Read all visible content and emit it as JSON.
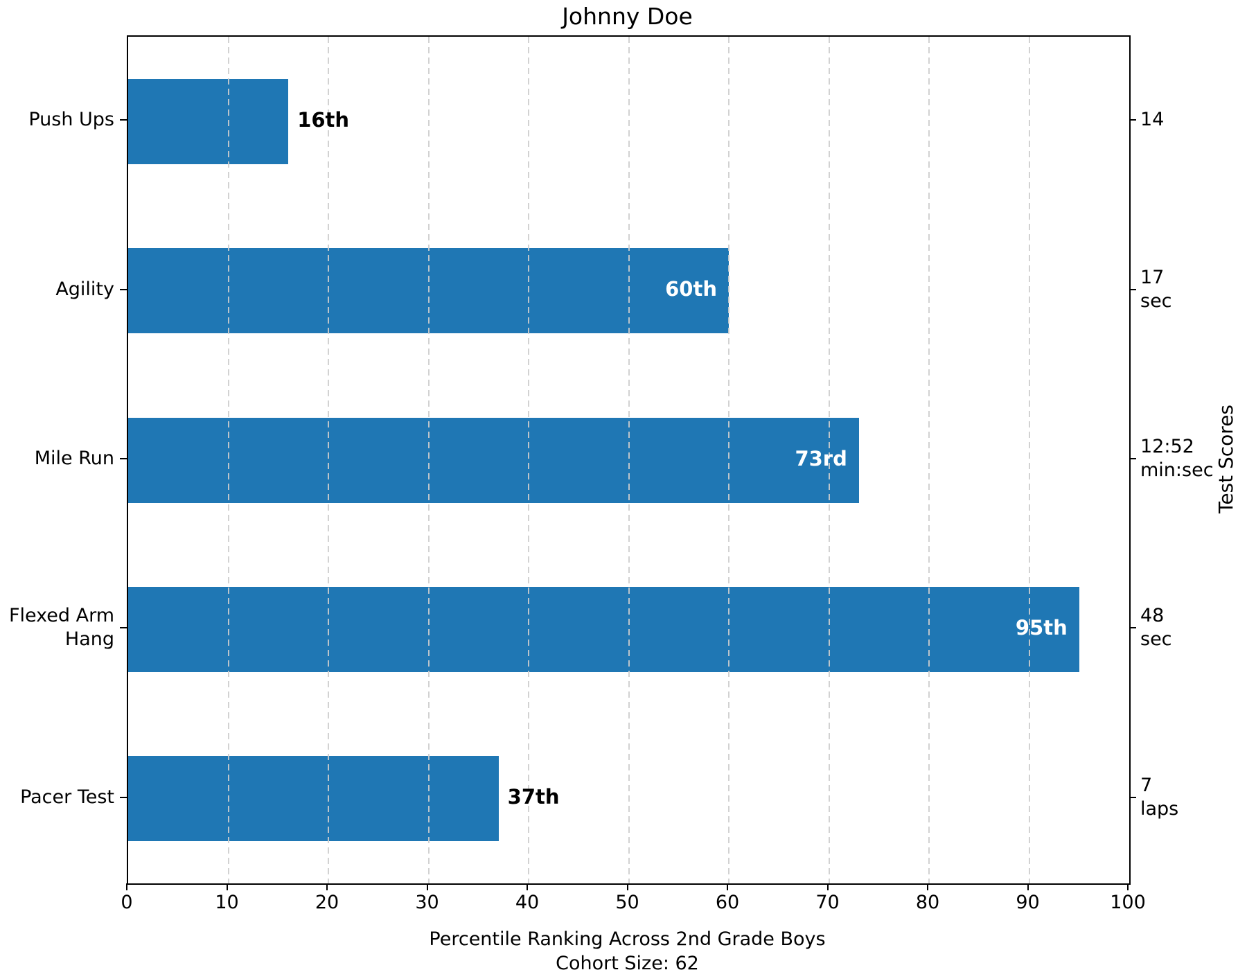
{
  "chart_data": {
    "type": "bar",
    "orientation": "horizontal",
    "title": "Johnny Doe",
    "categories": [
      "Push Ups",
      "Agility",
      "Mile Run",
      "Flexed Arm\nHang",
      "Pacer Test"
    ],
    "values": [
      16,
      60,
      73,
      95,
      37
    ],
    "value_labels": [
      "16th",
      "60th",
      "73rd",
      "95th",
      "37th"
    ],
    "score_labels": [
      "14",
      "17\nsec",
      "12:52\nmin:sec",
      "48\nsec",
      "7\nlaps"
    ],
    "xlabel_line1": "Percentile Ranking Across 2nd Grade Boys",
    "xlabel_line2": "Cohort Size: 62",
    "right_axis_label": "Test Scores",
    "xlim": [
      0,
      100
    ],
    "xticks": [
      0,
      10,
      20,
      30,
      40,
      50,
      60,
      70,
      80,
      90,
      100
    ],
    "bar_color": "#1f77b4",
    "bar_label_inside_color": "#ffffff",
    "bar_label_outside_color": "#000000",
    "grid": "vertical-dashed",
    "legend": "none"
  }
}
